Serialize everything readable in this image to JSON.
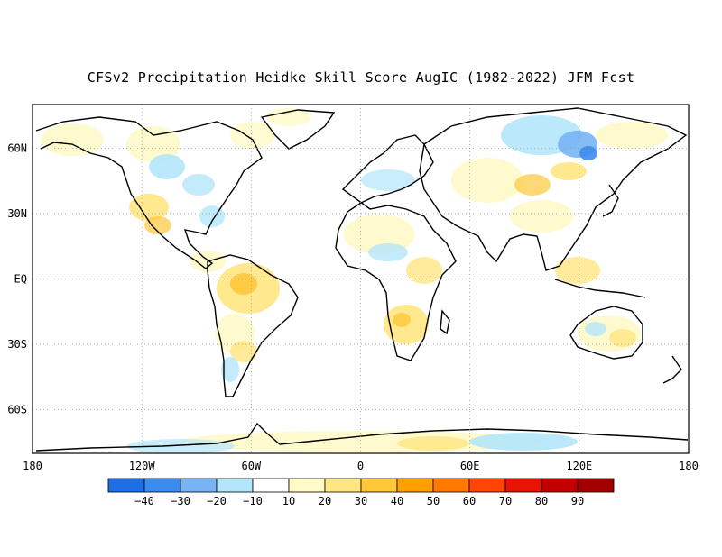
{
  "title": "CFSv2 Precipitation Heidke Skill Score AugIC (1982-2022) JFM Fcst",
  "map": {
    "projection": "cylindrical-equidistant",
    "lon_range": [
      -180,
      180
    ],
    "lat_range": [
      -80,
      80
    ],
    "lat_ticks": [
      {
        "value": 60,
        "label": "60N"
      },
      {
        "value": 30,
        "label": "30N"
      },
      {
        "value": 0,
        "label": "EQ"
      },
      {
        "value": -30,
        "label": "30S"
      },
      {
        "value": -60,
        "label": "60S"
      }
    ],
    "lon_ticks": [
      {
        "value": -180,
        "label": "180"
      },
      {
        "value": -120,
        "label": "120W"
      },
      {
        "value": -60,
        "label": "60W"
      },
      {
        "value": 0,
        "label": "0"
      },
      {
        "value": 60,
        "label": "60E"
      },
      {
        "value": 120,
        "label": "120E"
      },
      {
        "value": 180,
        "label": "180"
      }
    ],
    "grid": "dotted"
  },
  "colorbar": {
    "colors": [
      "#1e6ee6",
      "#3c8cf0",
      "#78b4f5",
      "#b4e6fa",
      "#ffffff",
      "#fffac8",
      "#ffe682",
      "#ffc83c",
      "#ffa000",
      "#ff7800",
      "#ff4600",
      "#e61400",
      "#c30000",
      "#a00000"
    ],
    "labels": [
      "-40",
      "-30",
      "-20",
      "-10",
      "10",
      "20",
      "30",
      "40",
      "50",
      "60",
      "70",
      "80",
      "90"
    ]
  }
}
